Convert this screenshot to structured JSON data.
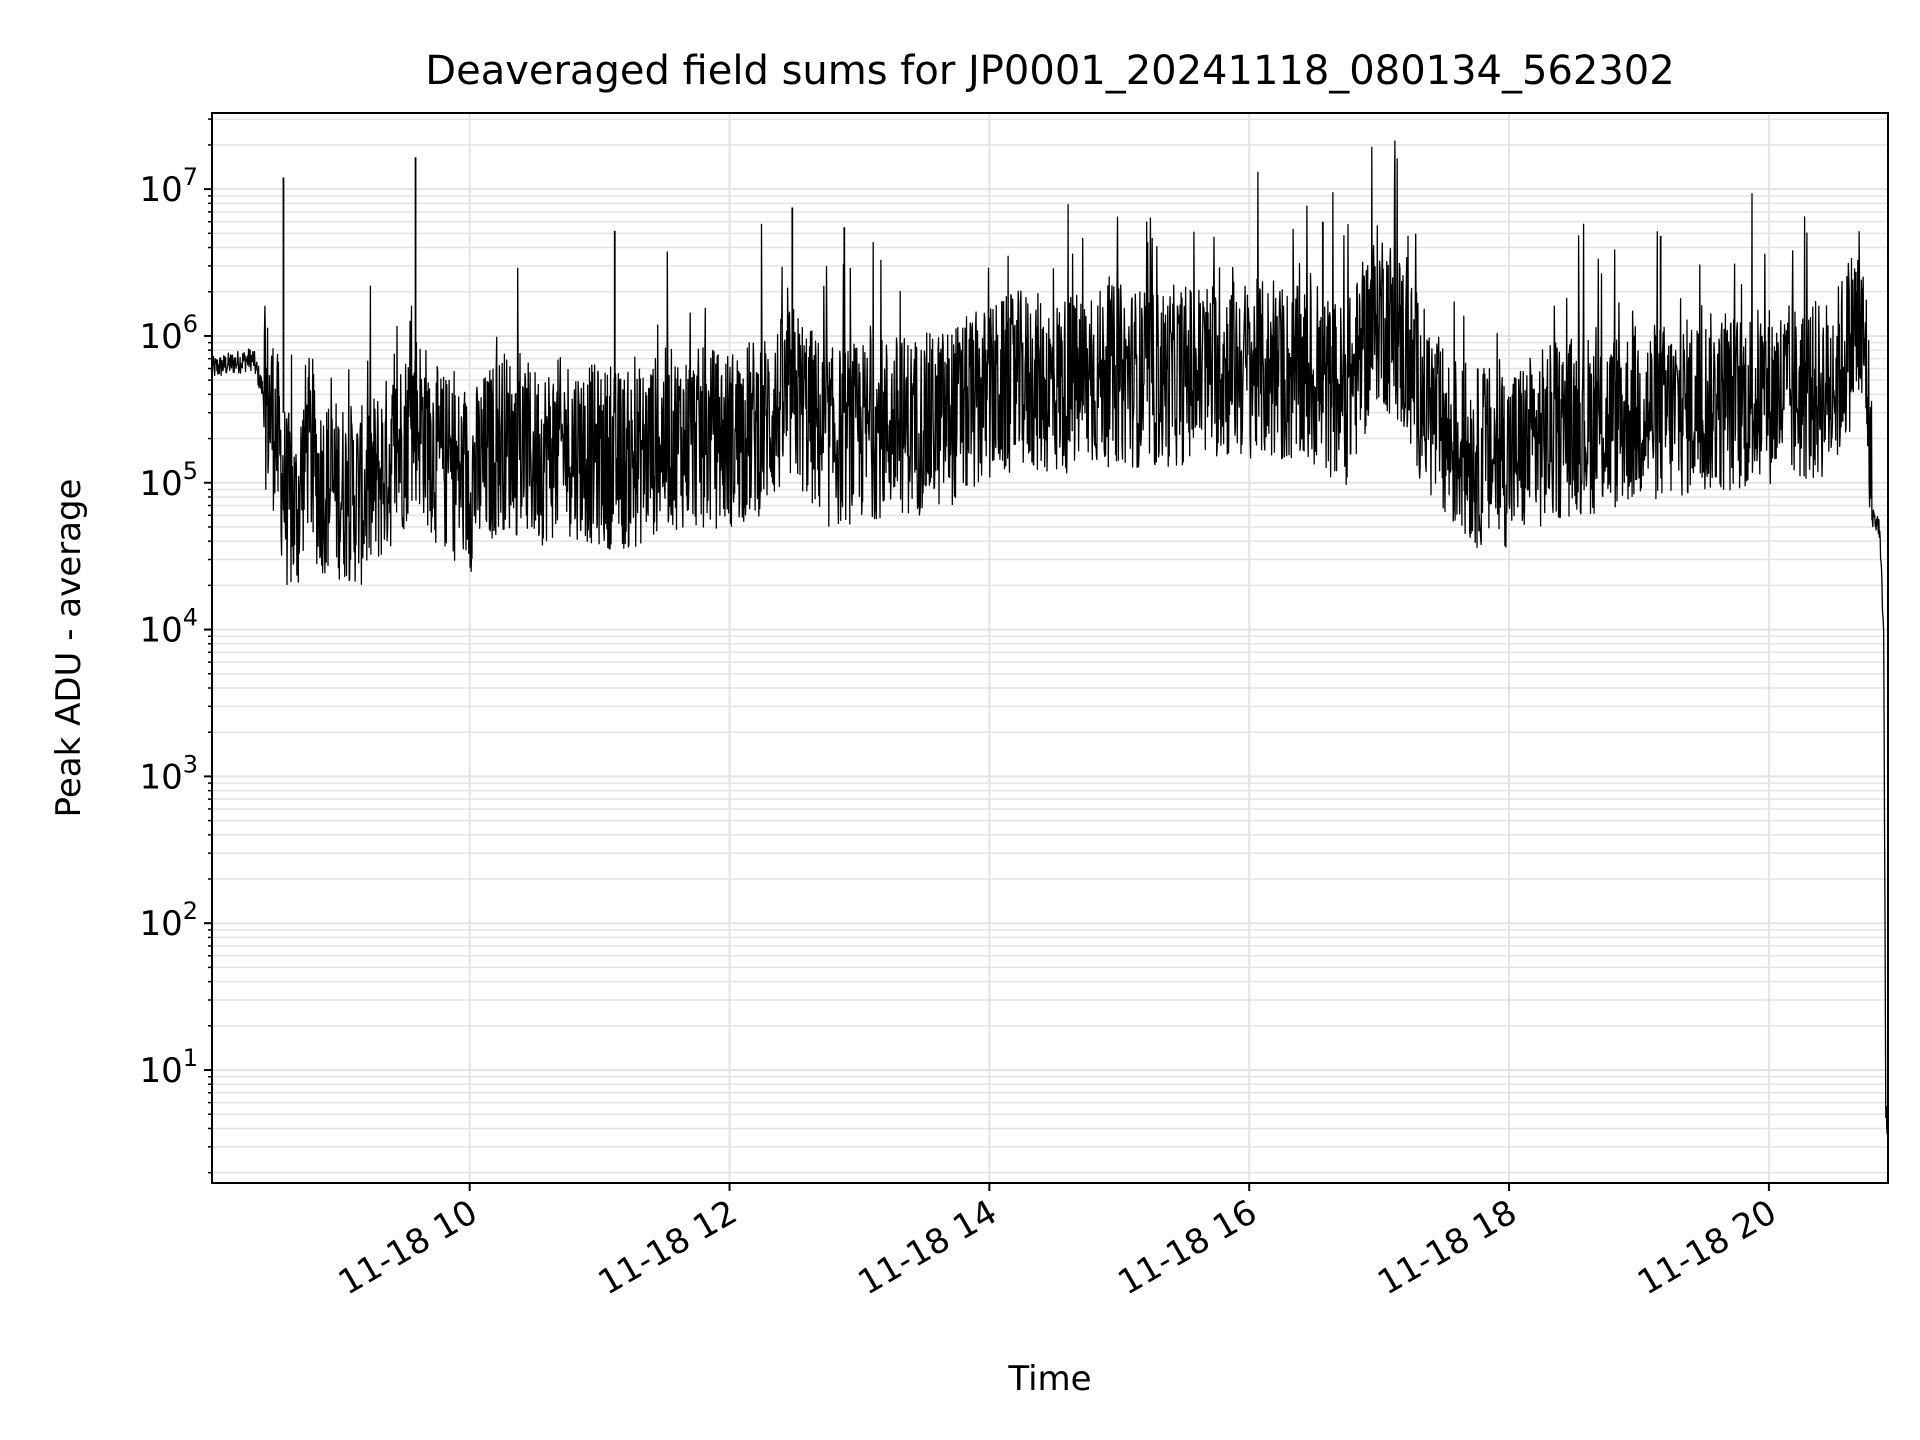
{
  "chart_data": {
    "type": "line",
    "title": "Deaveraged field sums for JP0001_20241118_080134_562302",
    "xlabel": "Time",
    "ylabel": "Peak ADU - average",
    "yscale": "log",
    "grid": true,
    "xlim": [
      "2024-11-18 08:01",
      "2024-11-18 20:55"
    ],
    "ylim": [
      1.7,
      33000000
    ],
    "x_tick_labels": [
      "11-18 10",
      "11-18 12",
      "11-18 14",
      "11-18 16",
      "11-18 18",
      "11-18 20"
    ],
    "y_tick_labels": [
      {
        "base": "10",
        "exp": "1"
      },
      {
        "base": "10",
        "exp": "2"
      },
      {
        "base": "10",
        "exp": "3"
      },
      {
        "base": "10",
        "exp": "4"
      },
      {
        "base": "10",
        "exp": "5"
      },
      {
        "base": "10",
        "exp": "6"
      },
      {
        "base": "10",
        "exp": "7"
      }
    ],
    "line_color": "#000000",
    "grid_color": "#e3e3e3",
    "series": [
      {
        "x": [
          "2024-11-18 08:01",
          "2024-11-18 08:10",
          "2024-11-18 08:20",
          "2024-11-18 08:25",
          "2024-11-18 08:30",
          "2024-11-18 08:35",
          "2024-11-18 08:40",
          "2024-11-18 08:45",
          "2024-11-18 08:50",
          "2024-11-18 09:00",
          "2024-11-18 09:10",
          "2024-11-18 09:20",
          "2024-11-18 09:30",
          "2024-11-18 09:35",
          "2024-11-18 09:45",
          "2024-11-18 10:00",
          "2024-11-18 10:15",
          "2024-11-18 10:30",
          "2024-11-18 10:45",
          "2024-11-18 11:00",
          "2024-11-18 11:15",
          "2024-11-18 11:30",
          "2024-11-18 11:45",
          "2024-11-18 12:00",
          "2024-11-18 12:15",
          "2024-11-18 12:30",
          "2024-11-18 12:45",
          "2024-11-18 13:00",
          "2024-11-18 13:15",
          "2024-11-18 13:30",
          "2024-11-18 13:45",
          "2024-11-18 14:00",
          "2024-11-18 14:15",
          "2024-11-18 14:30",
          "2024-11-18 14:45",
          "2024-11-18 15:00",
          "2024-11-18 15:15",
          "2024-11-18 15:30",
          "2024-11-18 15:45",
          "2024-11-18 16:00",
          "2024-11-18 16:15",
          "2024-11-18 16:30",
          "2024-11-18 16:45",
          "2024-11-18 17:00",
          "2024-11-18 17:10",
          "2024-11-18 17:20",
          "2024-11-18 17:30",
          "2024-11-18 17:45",
          "2024-11-18 18:00",
          "2024-11-18 18:15",
          "2024-11-18 18:30",
          "2024-11-18 18:45",
          "2024-11-18 19:00",
          "2024-11-18 19:15",
          "2024-11-18 19:30",
          "2024-11-18 19:45",
          "2024-11-18 20:00",
          "2024-11-18 20:15",
          "2024-11-18 20:30",
          "2024-11-18 20:40",
          "2024-11-18 20:45",
          "2024-11-18 20:48",
          "2024-11-18 20:51",
          "2024-11-18 20:53",
          "2024-11-18 20:54",
          "2024-11-18 20:55"
        ],
        "values": [
          600000,
          650000,
          700000,
          400000,
          250000,
          80000,
          60000,
          200000,
          100000,
          90000,
          80000,
          120000,
          200000,
          300000,
          150000,
          100000,
          200000,
          150000,
          180000,
          150000,
          140000,
          200000,
          200000,
          200000,
          250000,
          400000,
          200000,
          220000,
          250000,
          250000,
          300000,
          400000,
          500000,
          450000,
          500000,
          550000,
          500000,
          550000,
          600000,
          600000,
          550000,
          500000,
          400000,
          1500000,
          900000,
          400000,
          200000,
          150000,
          150000,
          200000,
          250000,
          250000,
          300000,
          300000,
          350000,
          350000,
          400000,
          400000,
          450000,
          1200000,
          700000,
          60000,
          50000,
          10000,
          5,
          4
        ]
      }
    ],
    "spikes": [
      {
        "x": "2024-11-18 08:34",
        "value": 12000000
      },
      {
        "x": "2024-11-18 09:35",
        "value": 16500000
      },
      {
        "x": "2024-11-18 11:07",
        "value": 5200000
      },
      {
        "x": "2024-11-18 12:29",
        "value": 7500000
      },
      {
        "x": "2024-11-18 12:53",
        "value": 5500000
      },
      {
        "x": "2024-11-18 16:34",
        "value": 6000000
      },
      {
        "x": "2024-11-18 19:10",
        "value": 4800000
      }
    ]
  }
}
